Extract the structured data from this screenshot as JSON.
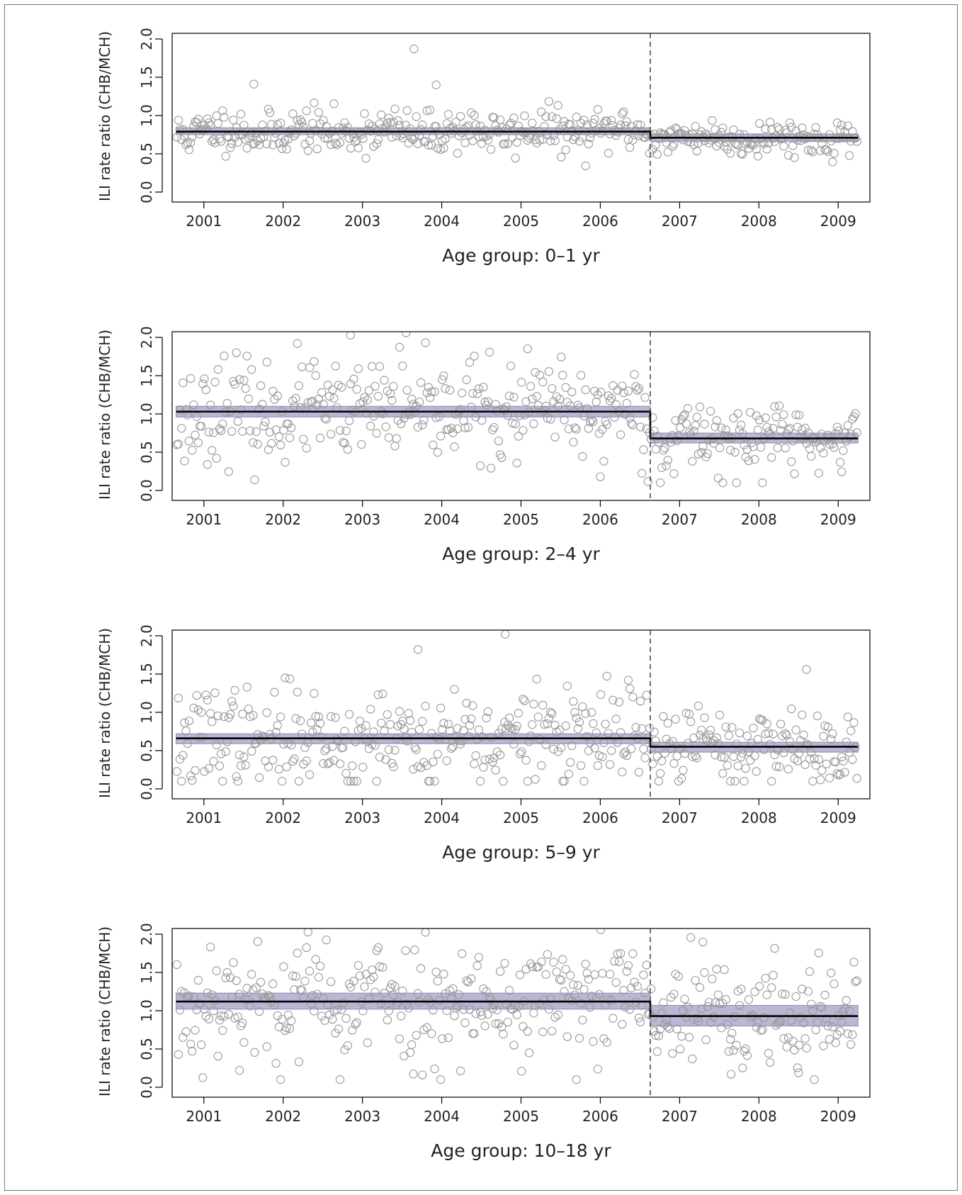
{
  "chart_data": [
    {
      "type": "scatter",
      "caption": "Age group: 0–1 yr",
      "ylabel": "ILI rate ratio (CHB/MCH)",
      "x_ticks": [
        "2001",
        "2002",
        "2003",
        "2004",
        "2005",
        "2006",
        "2007",
        "2008",
        "2009"
      ],
      "y_ticks": [
        "0.0",
        "0.5",
        "1.0",
        "1.5",
        "2.0"
      ],
      "ylim": [
        0,
        2
      ],
      "xlim": [
        2000.6,
        2009.4
      ],
      "intervention_x": 2006.63,
      "fit": [
        {
          "from": 2000.65,
          "to": 2006.63,
          "level": 0.79,
          "ci": [
            0.75,
            0.84
          ]
        },
        {
          "from": 2006.63,
          "to": 2009.25,
          "level": 0.71,
          "ci": [
            0.66,
            0.76
          ]
        }
      ],
      "scatter_sd": [
        0.17,
        0.13
      ],
      "seed": 11,
      "outliers": [
        {
          "x": 2003.65,
          "y": 1.87
        },
        {
          "x": 2001.63,
          "y": 1.41
        },
        {
          "x": 2003.93,
          "y": 1.4
        }
      ]
    },
    {
      "type": "scatter",
      "caption": "Age group: 2–4 yr",
      "ylabel": "ILI rate ratio (CHB/MCH)",
      "x_ticks": [
        "2001",
        "2002",
        "2003",
        "2004",
        "2005",
        "2006",
        "2007",
        "2008",
        "2009"
      ],
      "y_ticks": [
        "0.0",
        "0.5",
        "1.0",
        "1.5",
        "2.0"
      ],
      "ylim": [
        0,
        2
      ],
      "xlim": [
        2000.6,
        2009.4
      ],
      "intervention_x": 2006.63,
      "fit": [
        {
          "from": 2000.65,
          "to": 2006.63,
          "level": 1.03,
          "ci": [
            0.96,
            1.1
          ]
        },
        {
          "from": 2006.63,
          "to": 2009.25,
          "level": 0.68,
          "ci": [
            0.62,
            0.75
          ]
        }
      ],
      "scatter_sd": [
        0.38,
        0.28
      ],
      "seed": 23,
      "outliers": [
        {
          "x": 2002.85,
          "y": 2.03
        },
        {
          "x": 2003.55,
          "y": 2.06
        },
        {
          "x": 2006.0,
          "y": 0.18
        }
      ]
    },
    {
      "type": "scatter",
      "caption": "Age group: 5–9 yr",
      "ylabel": "ILI rate ratio (CHB/MCH)",
      "x_ticks": [
        "2001",
        "2002",
        "2003",
        "2004",
        "2005",
        "2006",
        "2007",
        "2008",
        "2009"
      ],
      "y_ticks": [
        "0.0",
        "0.5",
        "1.0",
        "1.5",
        "2.0"
      ],
      "ylim": [
        0,
        2
      ],
      "xlim": [
        2000.6,
        2009.4
      ],
      "intervention_x": 2006.63,
      "fit": [
        {
          "from": 2000.65,
          "to": 2006.63,
          "level": 0.66,
          "ci": [
            0.59,
            0.72
          ]
        },
        {
          "from": 2006.63,
          "to": 2009.25,
          "level": 0.55,
          "ci": [
            0.48,
            0.61
          ]
        }
      ],
      "scatter_sd": [
        0.38,
        0.3
      ],
      "seed": 37,
      "outliers": [
        {
          "x": 2004.8,
          "y": 2.02
        },
        {
          "x": 2003.7,
          "y": 1.82
        },
        {
          "x": 2008.6,
          "y": 1.56
        }
      ]
    },
    {
      "type": "scatter",
      "caption": "Age group: 10–18 yr",
      "ylabel": "ILI rate ratio (CHB/MCH)",
      "x_ticks": [
        "2001",
        "2002",
        "2003",
        "2004",
        "2005",
        "2006",
        "2007",
        "2008",
        "2009"
      ],
      "y_ticks": [
        "0.0",
        "0.5",
        "1.0",
        "1.5",
        "2.0"
      ],
      "ylim": [
        0,
        2
      ],
      "xlim": [
        2000.6,
        2009.4
      ],
      "intervention_x": 2006.63,
      "fit": [
        {
          "from": 2000.65,
          "to": 2006.63,
          "level": 1.12,
          "ci": [
            1.02,
            1.23
          ]
        },
        {
          "from": 2006.63,
          "to": 2009.25,
          "level": 0.93,
          "ci": [
            0.8,
            1.07
          ]
        }
      ],
      "scatter_sd": [
        0.48,
        0.45
      ],
      "seed": 53,
      "outliers": [
        {
          "x": 2001.45,
          "y": 0.22
        },
        {
          "x": 2007.65,
          "y": 0.17
        },
        {
          "x": 2008.5,
          "y": 0.19
        }
      ]
    }
  ],
  "colors": {
    "ci_band": "#b9b7d3",
    "ci_edge": "#8f8bb8",
    "fit_line": "#000000",
    "points": "#9a9a9a",
    "axes": "#000000",
    "intervention_line": "#333333"
  }
}
